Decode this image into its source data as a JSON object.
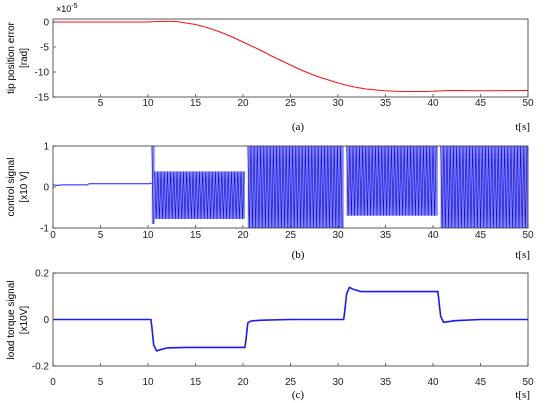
{
  "chart_data": [
    {
      "type": "line",
      "panel_label": "(a)",
      "ylabel": [
        "tip position error",
        "[rad]"
      ],
      "xlabel": "t[s]",
      "y_exponent": "×10",
      "y_exponent_power": "-5",
      "xlim": [
        0,
        50
      ],
      "ylim": [
        -15,
        0.6
      ],
      "xticks": [
        5,
        10,
        15,
        20,
        25,
        30,
        35,
        40,
        45,
        50
      ],
      "yticks": [
        0,
        -5,
        -10,
        -15
      ],
      "ytick_labels": [
        "0",
        "-5",
        "-10",
        "-15"
      ],
      "series": [
        {
          "color": "#e8161b",
          "x": [
            0,
            5,
            10,
            11,
            12,
            13,
            14,
            15,
            16,
            17,
            18,
            19,
            20,
            21,
            22,
            23,
            24,
            25,
            26,
            27,
            28,
            29,
            30,
            31,
            32,
            33,
            34,
            35,
            36,
            37,
            38,
            39,
            40,
            41,
            42,
            45,
            50
          ],
          "y": [
            0,
            0,
            0,
            0.1,
            0.15,
            0.1,
            -0.2,
            -0.5,
            -1.0,
            -1.6,
            -2.3,
            -3.1,
            -4.0,
            -4.9,
            -5.8,
            -6.8,
            -7.7,
            -8.6,
            -9.5,
            -10.3,
            -11.0,
            -11.6,
            -12.2,
            -12.7,
            -13.1,
            -13.4,
            -13.6,
            -13.75,
            -13.85,
            -13.9,
            -13.9,
            -13.9,
            -13.85,
            -13.75,
            -13.7,
            -13.75,
            -13.7
          ]
        }
      ]
    },
    {
      "type": "line",
      "panel_label": "(b)",
      "ylabel": [
        "control signal",
        "[x10 V]"
      ],
      "xlabel": "t[s]",
      "xlim": [
        0,
        50
      ],
      "ylim": [
        -1,
        1
      ],
      "xticks": [
        0,
        5,
        10,
        15,
        20,
        25,
        30,
        35,
        40,
        45,
        50
      ],
      "yticks": [
        -1,
        0,
        1
      ],
      "ytick_labels": [
        "-1",
        "0",
        "1"
      ],
      "series": [
        {
          "color": "#1a1aff",
          "baseline": [
            [
              0,
              0.05
            ],
            [
              0.4,
              0.04
            ],
            [
              1,
              0.05
            ],
            [
              3.6,
              0.05
            ],
            [
              3.8,
              0.08
            ],
            [
              10.2,
              0.08
            ],
            [
              10.4,
              0.1
            ]
          ],
          "bands": [
            {
              "x": [
                10.4,
                10.7
              ],
              "upper": 1.0,
              "lower": -0.9
            },
            {
              "x": [
                10.7,
                20.2
              ],
              "upper": 0.38,
              "lower": -0.78
            },
            {
              "x": [
                20.5,
                30.6
              ],
              "upper": 1.0,
              "lower": -1.0
            },
            {
              "x": [
                30.9,
                40.5
              ],
              "upper": 1.0,
              "lower": -0.7
            },
            {
              "x": [
                40.8,
                50
              ],
              "upper": 1.0,
              "lower": -1.0
            }
          ]
        }
      ]
    },
    {
      "type": "line",
      "panel_label": "(c)",
      "ylabel": [
        "load torque signal",
        "[x10V]"
      ],
      "xlabel": "t[s]",
      "xlim": [
        0,
        50
      ],
      "ylim": [
        -0.2,
        0.2
      ],
      "xticks": [
        0,
        5,
        10,
        15,
        20,
        25,
        30,
        35,
        40,
        45,
        50
      ],
      "yticks": [
        -0.2,
        0,
        0.2
      ],
      "ytick_labels": [
        "-0.2",
        "0",
        "0.2"
      ],
      "series": [
        {
          "color": "#1a1aff",
          "x": [
            0,
            10.3,
            10.4,
            10.6,
            10.9,
            11.3,
            12,
            14,
            16,
            18,
            20.2,
            20.3,
            20.5,
            20.8,
            21.2,
            22,
            25,
            28,
            30.6,
            30.7,
            30.9,
            31.2,
            31.6,
            32.4,
            35,
            38,
            40.5,
            40.6,
            40.8,
            41.1,
            41.5,
            42.3,
            45,
            48,
            50
          ],
          "y": [
            0,
            0,
            -0.03,
            -0.11,
            -0.135,
            -0.13,
            -0.122,
            -0.12,
            -0.12,
            -0.12,
            -0.12,
            -0.09,
            -0.015,
            -0.007,
            -0.005,
            -0.003,
            0,
            0,
            0,
            0.03,
            0.11,
            0.138,
            0.13,
            0.12,
            0.12,
            0.12,
            0.12,
            0.09,
            0.015,
            -0.012,
            -0.01,
            -0.005,
            0,
            0,
            0
          ]
        }
      ]
    }
  ]
}
